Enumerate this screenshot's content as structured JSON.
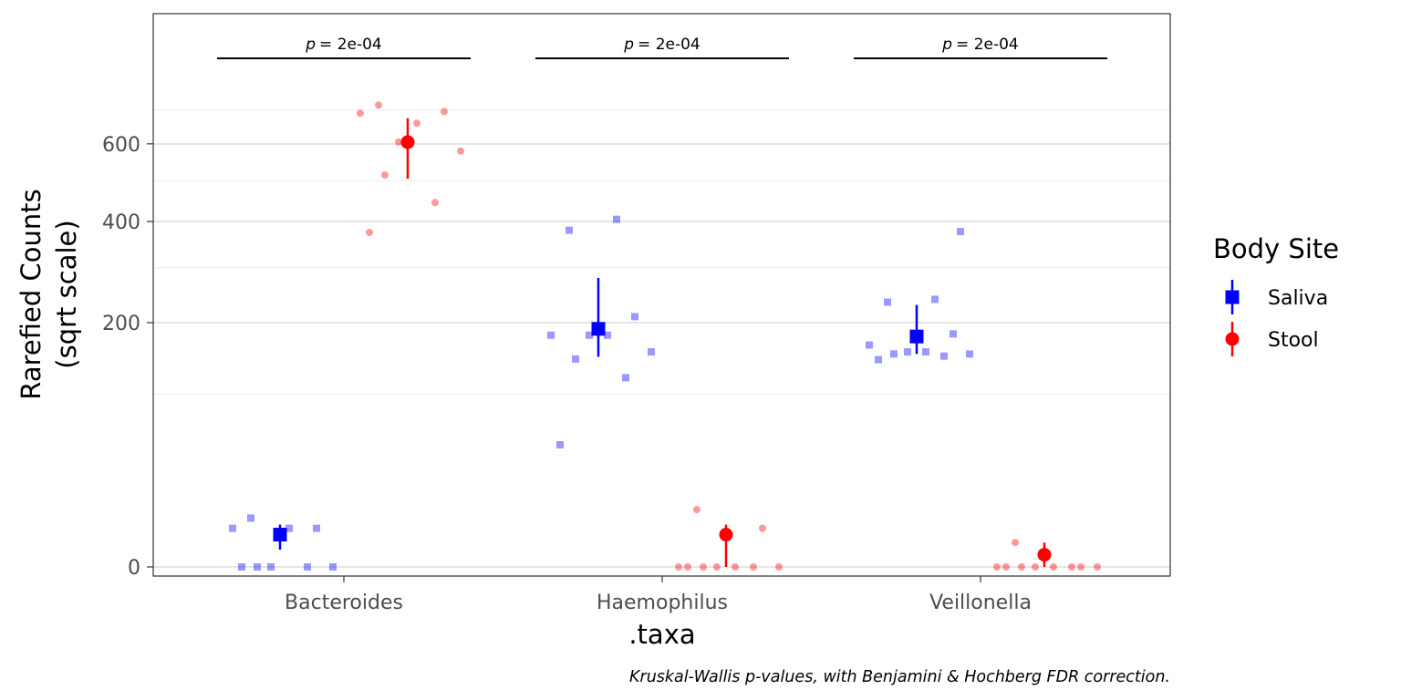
{
  "chart_data": {
    "type": "scatter",
    "title": "",
    "xlabel": ".taxa",
    "ylabel_lines": [
      "Rarefied Counts",
      "(sqrt scale)"
    ],
    "y_scale": "sqrt",
    "ylim": [
      0,
      760
    ],
    "y_ticks": [
      0,
      200,
      400,
      600
    ],
    "y_tick_labels": [
      "0",
      "200",
      "400",
      "600"
    ],
    "y_minor_ticks": [
      100,
      300,
      500,
      700
    ],
    "grid": true,
    "categories": [
      "Bacteroides",
      "Haemophilus",
      "Veillonella"
    ],
    "legend": {
      "title": "Body Site",
      "position": "right",
      "entries": [
        {
          "label": "Saliva",
          "color": "#0000ff",
          "shape": "square"
        },
        {
          "label": "Stool",
          "color": "#ff0000",
          "shape": "circle"
        }
      ]
    },
    "annotations": {
      "pvalues": [
        {
          "category": "Bacteroides",
          "label": "= 2e-04"
        },
        {
          "category": "Haemophilus",
          "label": "= 2e-04"
        },
        {
          "category": "Veillonella",
          "label": "= 2e-04"
        }
      ],
      "p_symbol": "p",
      "caption": "Kruskal-Wallis p-values, with Benjamini & Hochberg FDR correction."
    },
    "series": [
      {
        "name": "Saliva",
        "color": "#0000ff",
        "points": {
          "Bacteroides": [
            0,
            0,
            0,
            0,
            0,
            5,
            5,
            5,
            8
          ],
          "Haemophilus": [
            50,
            120,
            145,
            155,
            180,
            180,
            180,
            210,
            380,
            405
          ],
          "Veillonella": [
            144,
            149,
            152,
            152,
            155,
            155,
            165,
            182,
            235,
            240,
            377
          ]
        },
        "summary": {
          "Bacteroides": {
            "mean": 3.5,
            "low": 1,
            "high": 6
          },
          "Haemophilus": {
            "mean": 190,
            "low": 148,
            "high": 280
          },
          "Veillonella": {
            "mean": 178,
            "low": 152,
            "high": 230
          }
        }
      },
      {
        "name": "Stool",
        "color": "#ff0000",
        "points": {
          "Bacteroides": [
            375,
            445,
            515,
            580,
            605,
            660,
            690,
            695,
            715
          ],
          "Haemophilus": [
            0,
            0,
            0,
            0,
            0,
            0,
            0,
            5,
            11
          ],
          "Veillonella": [
            0,
            0,
            0,
            0,
            0,
            0,
            0,
            0,
            2
          ]
        },
        "summary": {
          "Bacteroides": {
            "mean": 605,
            "low": 505,
            "high": 675
          },
          "Haemophilus": {
            "mean": 3.5,
            "low": 0,
            "high": 6
          },
          "Veillonella": {
            "mean": 0.5,
            "low": 0,
            "high": 2
          }
        }
      }
    ]
  }
}
